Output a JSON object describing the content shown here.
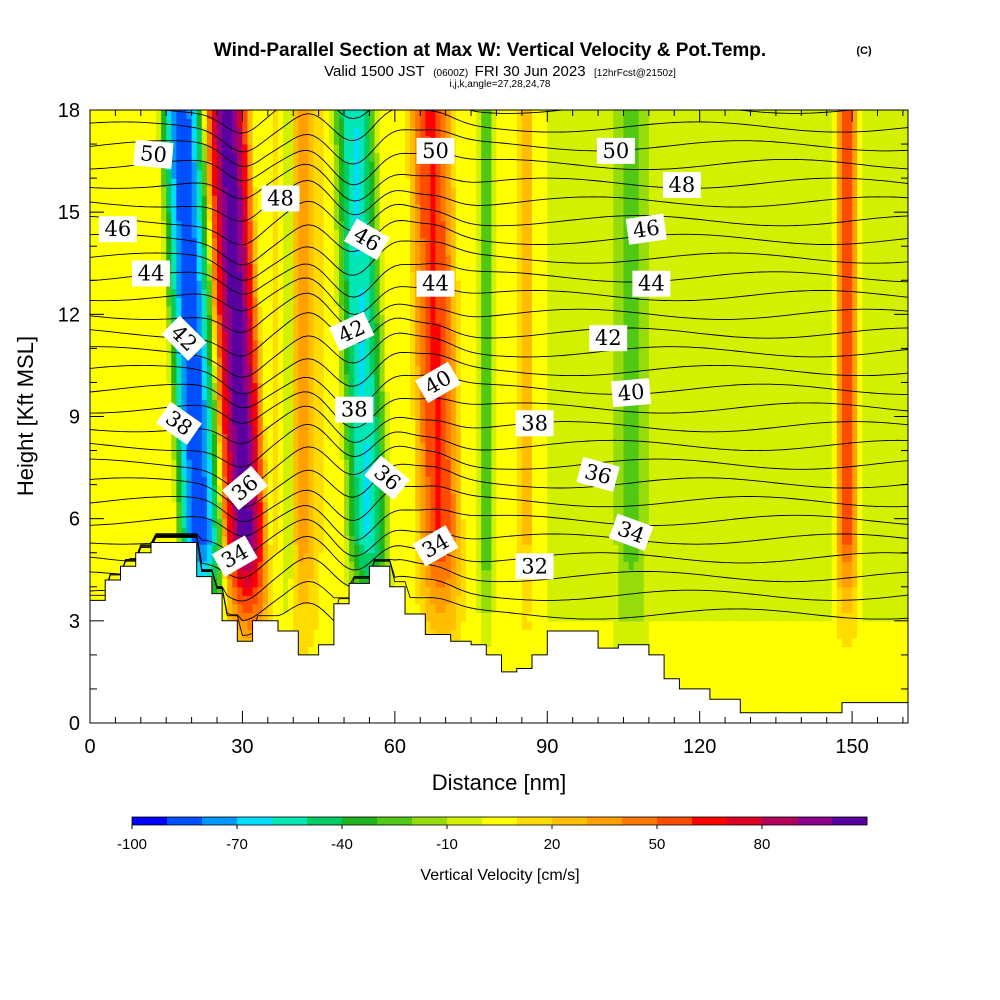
{
  "title": {
    "main": "Wind-Parallel Section at Max W: Vertical Velocity & Pot.Temp.",
    "copyright": "(C)",
    "line2_a": "Valid 1500 JST",
    "line2_b": "(0600Z)",
    "line2_c": "FRI 30 Jun 2023",
    "line2_d": "[12hrFcst@2150z]",
    "line3": "i,j,k,angle=27,28,24,78"
  },
  "chart_data": {
    "type": "heatmap",
    "xlabel": "Distance [nm]",
    "ylabel": "Height [Kft MSL]",
    "xlim": [
      0,
      161
    ],
    "ylim": [
      0,
      18
    ],
    "x_ticks": [
      0,
      30,
      60,
      90,
      120,
      150
    ],
    "x_tick_labels": [
      "0",
      "30",
      "60",
      "90",
      "120",
      "150"
    ],
    "y_ticks": [
      0,
      3,
      6,
      9,
      12,
      15,
      18
    ],
    "y_tick_labels": [
      "0",
      "3",
      "6",
      "9",
      "12",
      "15",
      "18"
    ],
    "fill_variable": "Vertical Velocity [cm/s]",
    "contour_variable": "Pot.Temp.",
    "colorbar": {
      "label": "Vertical Velocity [cm/s]",
      "levels": [
        -100,
        -90,
        -80,
        -70,
        -60,
        -50,
        -40,
        -30,
        -20,
        -10,
        0,
        10,
        20,
        30,
        40,
        50,
        60,
        70,
        80,
        90,
        100
      ],
      "colors": [
        "#0000ff",
        "#0050ff",
        "#0096ff",
        "#00dcff",
        "#00e6b4",
        "#00cd64",
        "#1eb41e",
        "#50c814",
        "#96dc0a",
        "#d2f000",
        "#ffff00",
        "#ffdc00",
        "#ffbe00",
        "#ffa000",
        "#ff7800",
        "#ff4b00",
        "#ff0000",
        "#dc0028",
        "#b4005a",
        "#8c008c",
        "#5a00a0"
      ],
      "tick_values": [
        -100,
        -70,
        -40,
        -10,
        20,
        50,
        80
      ],
      "tick_labels": [
        "-100",
        "-70",
        "-40",
        "-10",
        "20",
        "50",
        "80"
      ]
    },
    "terrain_kft": [
      [
        0,
        3.6
      ],
      [
        3,
        4.2
      ],
      [
        6,
        4.6
      ],
      [
        9,
        5.0
      ],
      [
        12,
        5.3
      ],
      [
        21,
        4.3
      ],
      [
        24,
        3.8
      ],
      [
        26,
        3.0
      ],
      [
        29,
        2.4
      ],
      [
        32,
        3.0
      ],
      [
        37,
        2.7
      ],
      [
        41,
        2.0
      ],
      [
        45,
        2.3
      ],
      [
        48,
        3.5
      ],
      [
        51,
        4.1
      ],
      [
        55,
        4.6
      ],
      [
        59,
        4.0
      ],
      [
        62,
        3.2
      ],
      [
        66,
        2.6
      ],
      [
        71,
        2.4
      ],
      [
        75,
        2.3
      ],
      [
        78,
        2.0
      ],
      [
        81,
        1.5
      ],
      [
        84,
        1.6
      ],
      [
        87,
        2.0
      ],
      [
        90,
        2.7
      ],
      [
        95,
        2.7
      ],
      [
        100,
        2.2
      ],
      [
        104,
        2.3
      ],
      [
        110,
        2.0
      ],
      [
        113,
        1.3
      ],
      [
        116,
        1.0
      ],
      [
        122,
        0.7
      ],
      [
        128,
        0.3
      ],
      [
        142,
        0.3
      ],
      [
        148,
        0.6
      ],
      [
        161,
        0.6
      ]
    ],
    "updraft_bands": [
      {
        "x0": 26,
        "x1": 36,
        "top_shift": -4,
        "w_peak": 100
      },
      {
        "x0": 36,
        "x1": 46,
        "top_shift": 0,
        "w_peak": 30
      },
      {
        "x0": 64,
        "x1": 74,
        "top_shift": -2,
        "w_peak": 55
      },
      {
        "x0": 84,
        "x1": 88,
        "top_shift": 0,
        "w_peak": 20
      },
      {
        "x0": 146,
        "x1": 152,
        "top_shift": 0,
        "w_peak": 60
      }
    ],
    "downdraft_bands": [
      {
        "x0": 17,
        "x1": 27,
        "top_shift": -4,
        "w_min": -100
      },
      {
        "x0": 37,
        "x1": 41,
        "top_shift": 0,
        "w_min": -40
      },
      {
        "x0": 50,
        "x1": 60,
        "top_shift": -3,
        "w_min": -70
      },
      {
        "x0": 76,
        "x1": 80,
        "top_shift": 0,
        "w_min": -40
      },
      {
        "x0": 103,
        "x1": 110,
        "top_shift": 0,
        "w_min": -20
      }
    ],
    "contour_labels": [
      {
        "text": "50",
        "x": 12.5,
        "y": 16.7,
        "angle": 5
      },
      {
        "text": "48",
        "x": 37.5,
        "y": 15.4,
        "angle": 0
      },
      {
        "text": "46",
        "x": 5.5,
        "y": 14.5,
        "angle": 0
      },
      {
        "text": "44",
        "x": 12.0,
        "y": 13.2,
        "angle": 0
      },
      {
        "text": "42",
        "x": 18.5,
        "y": 11.3,
        "angle": 45
      },
      {
        "text": "38",
        "x": 17.5,
        "y": 8.8,
        "angle": 35
      },
      {
        "text": "36",
        "x": 30.5,
        "y": 6.9,
        "angle": -40
      },
      {
        "text": "34",
        "x": 28.5,
        "y": 4.9,
        "angle": -30
      },
      {
        "text": "46",
        "x": 54.5,
        "y": 14.2,
        "angle": 30
      },
      {
        "text": "42",
        "x": 51.5,
        "y": 11.5,
        "angle": -25
      },
      {
        "text": "38",
        "x": 52.0,
        "y": 9.2,
        "angle": 0
      },
      {
        "text": "36",
        "x": 58.5,
        "y": 7.2,
        "angle": 40
      },
      {
        "text": "34",
        "x": 68.0,
        "y": 5.2,
        "angle": -30
      },
      {
        "text": "50",
        "x": 68.0,
        "y": 16.8,
        "angle": 0
      },
      {
        "text": "44",
        "x": 68.0,
        "y": 12.9,
        "angle": 0
      },
      {
        "text": "40",
        "x": 68.5,
        "y": 10.0,
        "angle": -30
      },
      {
        "text": "38",
        "x": 87.5,
        "y": 8.8,
        "angle": 0
      },
      {
        "text": "32",
        "x": 87.5,
        "y": 4.6,
        "angle": 0
      },
      {
        "text": "50",
        "x": 103.5,
        "y": 16.8,
        "angle": 0
      },
      {
        "text": "48",
        "x": 116.5,
        "y": 15.8,
        "angle": 0
      },
      {
        "text": "46",
        "x": 109.5,
        "y": 14.5,
        "angle": -8
      },
      {
        "text": "44",
        "x": 110.5,
        "y": 12.9,
        "angle": 0
      },
      {
        "text": "42",
        "x": 102.0,
        "y": 11.3,
        "angle": 0
      },
      {
        "text": "40",
        "x": 106.5,
        "y": 9.7,
        "angle": -5
      },
      {
        "text": "36",
        "x": 100.0,
        "y": 7.3,
        "angle": 15
      },
      {
        "text": "34",
        "x": 106.5,
        "y": 5.6,
        "angle": 20
      }
    ]
  }
}
